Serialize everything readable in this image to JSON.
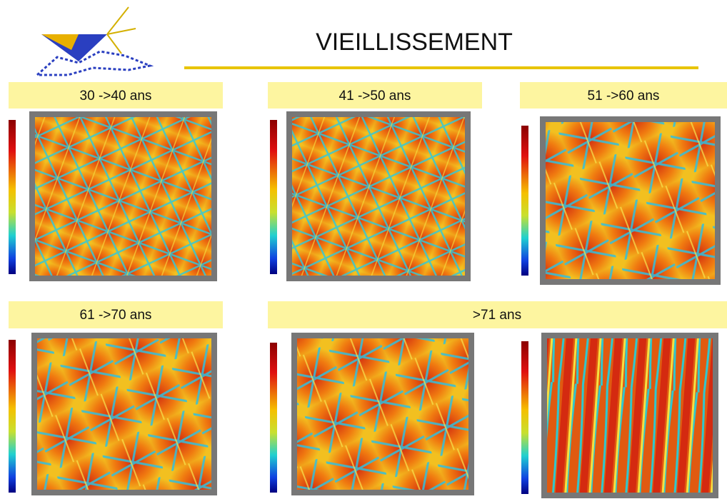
{
  "header": {
    "title": "VIEILLISSEMENT"
  },
  "panels": [
    {
      "label": "30 ->40 ans"
    },
    {
      "label": "41 ->50 ans"
    },
    {
      "label": "51 ->60 ans"
    },
    {
      "label": "61 ->70 ans"
    },
    {
      "label": ">71 ans"
    }
  ]
}
